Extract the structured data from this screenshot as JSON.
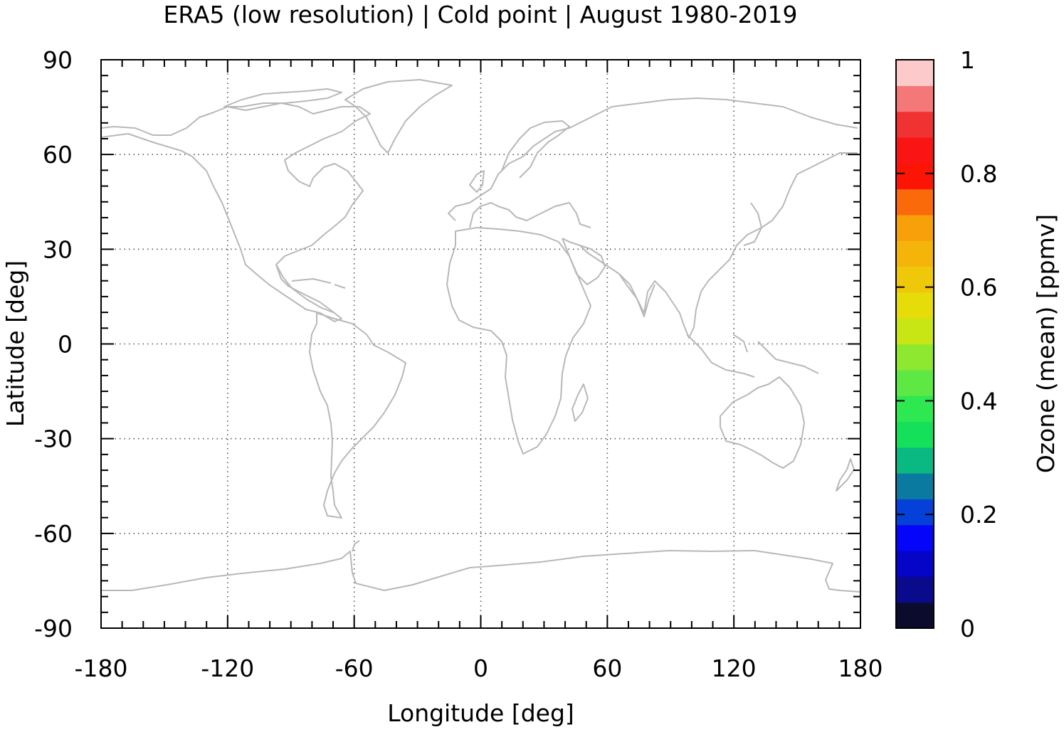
{
  "chart_data": {
    "type": "heatmap",
    "title": "ERA5 (low resolution) | Cold point | August 1980-2019",
    "xlabel": "Longitude [deg]",
    "ylabel": "Latitude [deg]",
    "xlim": [
      -180,
      180
    ],
    "ylim": [
      -90,
      90
    ],
    "xticks": [
      -180,
      -120,
      -60,
      0,
      60,
      120,
      180
    ],
    "yticks": [
      -90,
      -60,
      -30,
      0,
      30,
      60,
      90
    ],
    "grid": "dotted",
    "coastlines": "world coastlines (light grey)",
    "values": "no data drawn (empty field)",
    "colorbar": {
      "label": "Ozone (mean) [ppmv]",
      "range": [
        0,
        1
      ],
      "ticks": [
        "0",
        "0.2",
        "0.4",
        "0.6",
        "0.8",
        "1"
      ],
      "levels": 20,
      "colors": [
        "#0b0b2e",
        "#0a0a8c",
        "#0505c8",
        "#0505fa",
        "#0540d8",
        "#0a7aa0",
        "#0ab882",
        "#14e05a",
        "#2de850",
        "#5ee844",
        "#8ee830",
        "#c8e614",
        "#e6dc0a",
        "#f0c80a",
        "#f5b40a",
        "#f8a00a",
        "#fb6a0a",
        "#fc1405",
        "#fa1414",
        "#f03232",
        "#f57878",
        "#fccaca"
      ]
    }
  }
}
